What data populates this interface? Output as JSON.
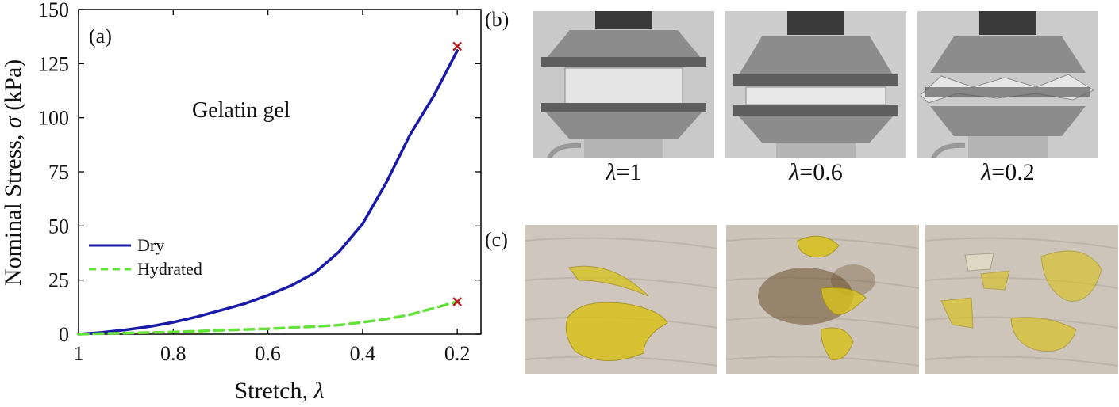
{
  "chart_data": {
    "type": "line",
    "panel_label": "(a)",
    "annotation": "Gelatin gel",
    "xlabel": "Stretch, ",
    "xlabel_symbol": "λ",
    "ylabel": "Nominal Stress, ",
    "ylabel_symbol": "σ",
    "ylabel_unit": " (kPa)",
    "x_reversed": true,
    "xlim": [
      1.0,
      0.15
    ],
    "ylim": [
      0,
      150
    ],
    "xticks": [
      1,
      0.8,
      0.6,
      0.4,
      0.2
    ],
    "xtick_labels": [
      "1",
      "0.8",
      "0.6",
      "0.4",
      "0.2"
    ],
    "yticks": [
      0,
      25,
      50,
      75,
      100,
      125,
      150
    ],
    "ytick_labels": [
      "0",
      "25",
      "50",
      "75",
      "100",
      "125",
      "150"
    ],
    "legend_position": "left",
    "series": [
      {
        "name": "Dry",
        "color": "#1a1aa8",
        "style": "solid",
        "x": [
          1.0,
          0.95,
          0.9,
          0.85,
          0.8,
          0.75,
          0.7,
          0.65,
          0.6,
          0.55,
          0.5,
          0.45,
          0.4,
          0.35,
          0.3,
          0.25,
          0.2
        ],
        "y": [
          0,
          0.8,
          2,
          3.5,
          5.5,
          8,
          11,
          14,
          18,
          22.5,
          28.5,
          38,
          51,
          70,
          92,
          110,
          131
        ],
        "failure_x": 0.2,
        "failure_y": 133
      },
      {
        "name": "Hydrated",
        "color": "#66e23c",
        "style": "dashed",
        "x": [
          1.0,
          0.9,
          0.8,
          0.7,
          0.6,
          0.55,
          0.5,
          0.45,
          0.4,
          0.35,
          0.3,
          0.25,
          0.2
        ],
        "y": [
          0,
          0.5,
          1,
          1.8,
          2.5,
          3,
          3.5,
          4.2,
          5.5,
          7,
          9,
          12,
          15
        ],
        "failure_x": 0.2,
        "failure_y": 15
      }
    ]
  },
  "photos": {
    "b_label": "(b)",
    "c_label": "(c)",
    "captions": [
      {
        "symbol": "λ",
        "value": "=1"
      },
      {
        "symbol": "λ",
        "value": "=0.6"
      },
      {
        "symbol": "λ",
        "value": "=0.2"
      }
    ],
    "colors": {
      "gray_bg": "#c9c9c9",
      "steel": "#7a7a7a",
      "paper": "#cfc7bd",
      "gel_yellow": "#d8c21a",
      "stain": "#6b5130",
      "failure_marker": "#b01c1c"
    }
  }
}
